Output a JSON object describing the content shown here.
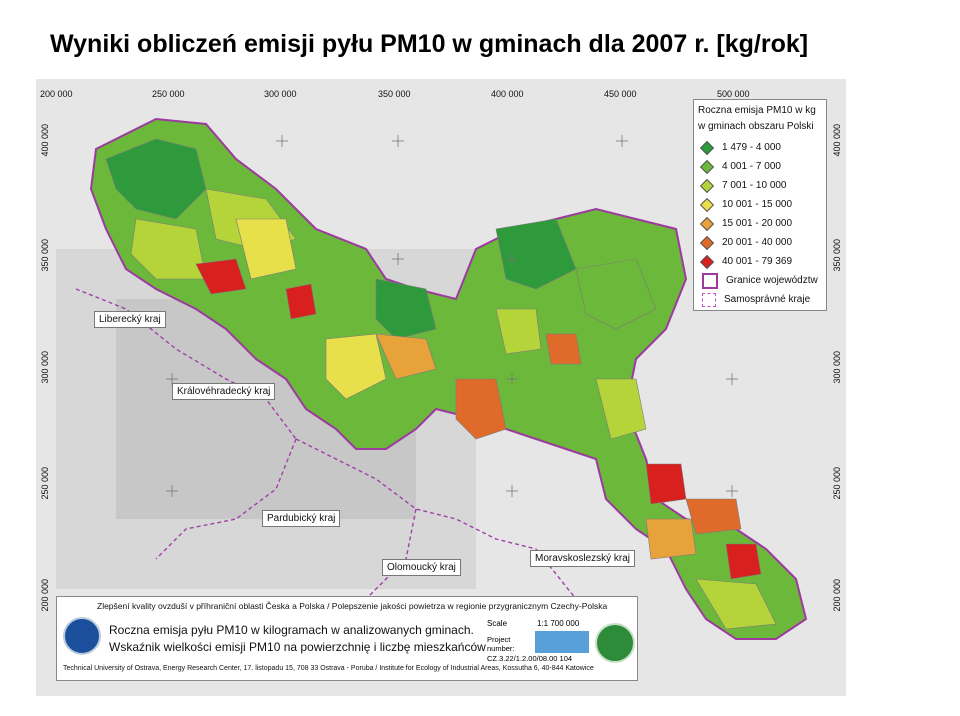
{
  "title": "Wyniki obliczeń emisji pyłu PM10 w gminach dla 2007 r. [kg/rok]",
  "map": {
    "top_coords": [
      "200 000",
      "250 000",
      "300 000",
      "350 000",
      "400 000",
      "450 000",
      "500 000"
    ],
    "left_coords": [
      "400 000",
      "350 000",
      "300 000",
      "250 000",
      "200 000"
    ],
    "right_coords": [
      "400 000",
      "350 000",
      "300 000",
      "250 000",
      "200 000"
    ],
    "region_labels": {
      "liberecky": "Liberecký kraj",
      "kralovehradecky": "Královéhradecký kraj",
      "pardubicky": "Pardubický kraj",
      "olomoucky": "Olomoucký kraj",
      "moravskoslezsky": "Moravskoslezský kraj"
    }
  },
  "legend": {
    "title_line1": "Roczna emisja PM10 w kg",
    "title_line2": "w gminach obszaru Polski",
    "items": [
      {
        "label": "1 479 - 4 000",
        "color": "#2e9a3c"
      },
      {
        "label": "4 001 - 7 000",
        "color": "#6cb83a"
      },
      {
        "label": "7 001 - 10 000",
        "color": "#b4d43a"
      },
      {
        "label": "10 001 - 15 000",
        "color": "#e8e04a"
      },
      {
        "label": "15 001 - 20 000",
        "color": "#e8a23a"
      },
      {
        "label": "20 001 - 40 000",
        "color": "#e06a2a"
      },
      {
        "label": "40 001 - 79 369",
        "color": "#d8201e"
      }
    ],
    "boundary_voivodeship": "Granice województw",
    "boundary_kraje": "Samosprávné kraje"
  },
  "footer": {
    "line1": "Zlepšení kvality ovzduší v příhraniční oblasti Česka a Polska / Polepszenie jakości powietrza w  regionie przygranicznym Czechy-Polska",
    "title1": "Roczna emisja pyłu PM10 w kilogramach w analizowanych gminach.",
    "title2": "Wskaźnik wielkości emisji PM10 na powierzchnię i liczbę mieszkańców",
    "scale_label": "Scale",
    "scale_value": "1:1 700 000",
    "project_label": "Project number:",
    "project_number": "CZ.3.22/1.2.00/08.00 104",
    "bottom": "Technical University of Ostrava, Energy Research Center, 17. listopadu 15, 708 33 Ostrava - Poruba / Institute for Ecology of Industrial Areas, Kossutha 6, 40-844 Katowice"
  }
}
